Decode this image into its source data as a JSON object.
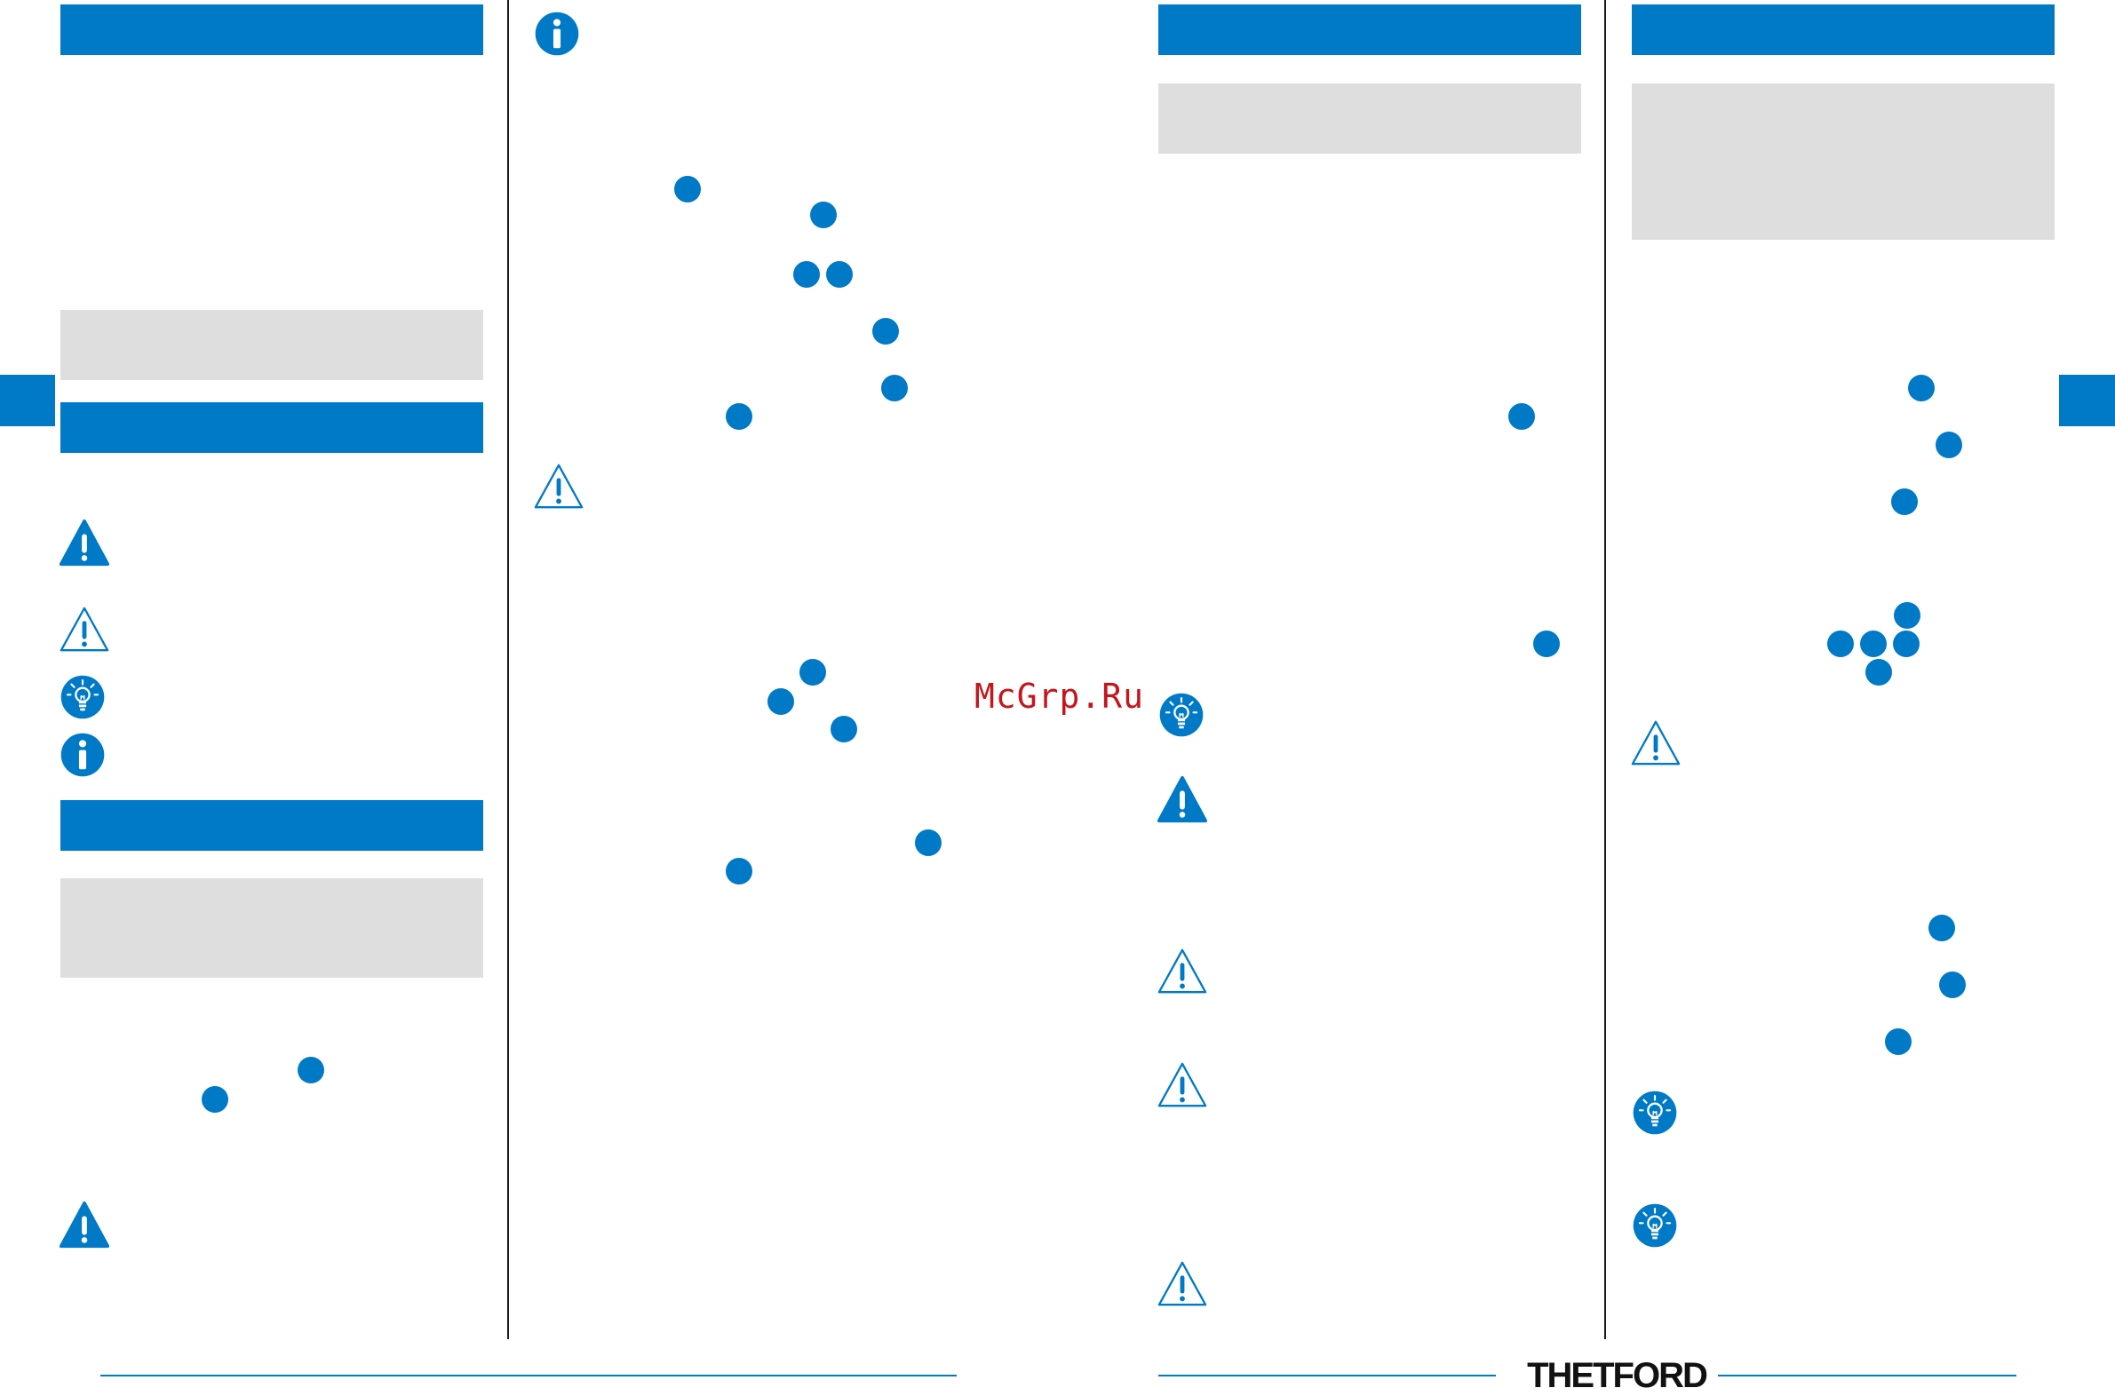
{
  "watermark": {
    "text": "McGrp.Ru"
  },
  "footer": {
    "brand": "THETFORD"
  },
  "colors": {
    "accent": "#0079c7",
    "panel": "#dedede",
    "divider": "#1a1a1a",
    "watermark": "#c4161c"
  },
  "icons": [
    "info-icon",
    "warning-filled-icon",
    "warning-outline-icon",
    "tip-bulb-icon"
  ]
}
